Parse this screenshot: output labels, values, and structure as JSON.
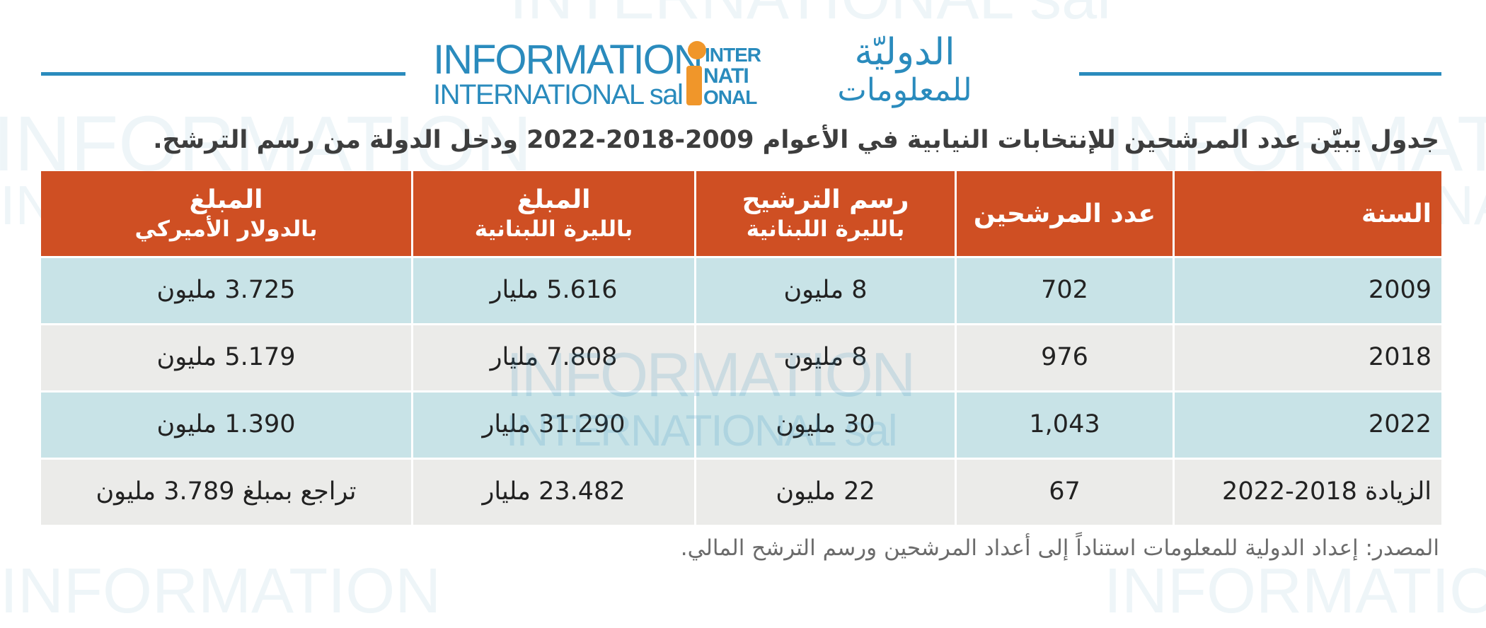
{
  "logo": {
    "english_line1": "INFORMATION",
    "english_line2": "INTERNATIONAL sal",
    "mark_line1": "INTER",
    "mark_line2": "NATI",
    "mark_line3": "ONAL",
    "arabic_line1": "الدوليّة",
    "arabic_line2": "للمعلومات",
    "colors": {
      "blue": "#2a8bbd",
      "orange": "#f0962a"
    }
  },
  "title": "جدول يبيّن عدد المرشحين للإنتخابات النيابية في الأعوام 2009-2018-2022 ودخل الدولة من رسم الترشح.",
  "table": {
    "header": {
      "year": "السنة",
      "candidates": "عدد المرشحين",
      "fee_title": "رسم الترشيح",
      "fee_sub": "بالليرة اللبنانية",
      "amount_lbp_title": "المبلغ",
      "amount_lbp_sub": "بالليرة اللبنانية",
      "amount_usd_title": "المبلغ",
      "amount_usd_sub": "بالدولار الأميركي"
    },
    "rows": [
      {
        "year": "2009",
        "candidates": "702",
        "fee": "8 مليون",
        "amount_lbp": "5.616 مليار",
        "amount_usd": "3.725 مليون"
      },
      {
        "year": "2018",
        "candidates": "976",
        "fee": "8 مليون",
        "amount_lbp": "7.808 مليار",
        "amount_usd": "5.179 مليون"
      },
      {
        "year": "2022",
        "candidates": "1,043",
        "fee": "30 مليون",
        "amount_lbp": "31.290 مليار",
        "amount_usd": "1.390 مليون"
      },
      {
        "year": "الزيادة 2018-2022",
        "candidates": "67",
        "fee": "22 مليون",
        "amount_lbp": "23.482 مليار",
        "amount_usd": "تراجع بمبلغ 3.789 مليون"
      }
    ],
    "colors": {
      "header": "#cf4f23",
      "row_blue": "#c8e3e7",
      "row_gray": "#ebebe9"
    }
  },
  "source": "المصدر: إعداد الدولية للمعلومات استناداً إلى أعداد المرشحين ورسم الترشح المالي."
}
